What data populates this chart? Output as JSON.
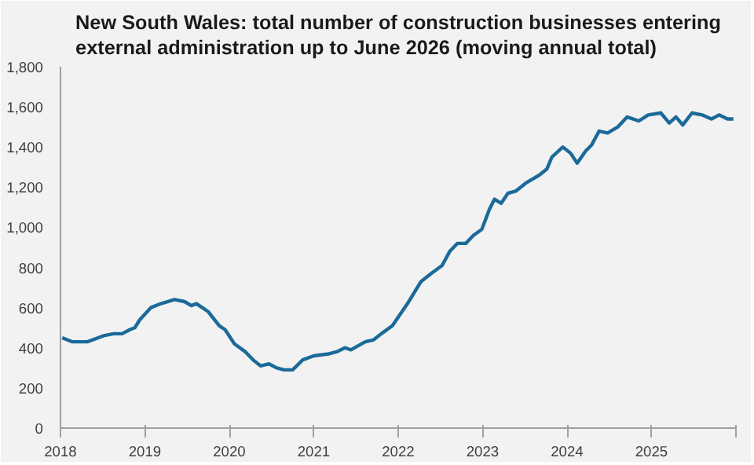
{
  "chart_data": {
    "type": "line",
    "title": "New South Wales: total number of construction businesses entering\nexternal administration up to June 2026 (moving annual total)",
    "x": [
      2018.02,
      2018.14,
      2018.32,
      2018.51,
      2018.63,
      2018.73,
      2018.82,
      2018.88,
      2018.94,
      2019.07,
      2019.19,
      2019.35,
      2019.47,
      2019.55,
      2019.61,
      2019.75,
      2019.88,
      2019.95,
      2020.06,
      2020.19,
      2020.28,
      2020.37,
      2020.47,
      2020.56,
      2020.65,
      2020.75,
      2020.87,
      2021.0,
      2021.18,
      2021.27,
      2021.37,
      2021.44,
      2021.61,
      2021.71,
      2021.8,
      2021.93,
      2022.11,
      2022.27,
      2022.39,
      2022.52,
      2022.61,
      2022.7,
      2022.8,
      2022.89,
      2022.99,
      2023.08,
      2023.14,
      2023.22,
      2023.3,
      2023.39,
      2023.51,
      2023.67,
      2023.76,
      2023.82,
      2023.95,
      2024.04,
      2024.12,
      2024.22,
      2024.29,
      2024.38,
      2024.48,
      2024.6,
      2024.71,
      2024.85,
      2024.96,
      2025.11,
      2025.21,
      2025.29,
      2025.37,
      2025.48,
      2025.6,
      2025.71,
      2025.8,
      2025.9,
      2025.97
    ],
    "series": [
      {
        "color": "#1b6a99",
        "values": [
          450,
          430,
          430,
          460,
          470,
          470,
          490,
          500,
          540,
          600,
          620,
          640,
          630,
          610,
          620,
          580,
          510,
          490,
          420,
          380,
          340,
          310,
          320,
          300,
          290,
          290,
          340,
          360,
          370,
          380,
          400,
          390,
          430,
          440,
          470,
          510,
          620,
          730,
          770,
          810,
          880,
          920,
          920,
          960,
          990,
          1090,
          1140,
          1120,
          1170,
          1180,
          1220,
          1260,
          1290,
          1350,
          1400,
          1370,
          1320,
          1380,
          1410,
          1480,
          1470,
          1500,
          1550,
          1530,
          1560,
          1570,
          1520,
          1550,
          1510,
          1570,
          1560,
          1540,
          1560,
          1540,
          1540
        ]
      }
    ],
    "xlim": [
      2018,
      2026
    ],
    "xticks": [
      {
        "value": 2018,
        "label": "2018"
      },
      {
        "value": 2019,
        "label": "2019"
      },
      {
        "value": 2020,
        "label": "2020"
      },
      {
        "value": 2021,
        "label": "2021"
      },
      {
        "value": 2022,
        "label": "2022"
      },
      {
        "value": 2023,
        "label": "2023"
      },
      {
        "value": 2024,
        "label": "2024"
      },
      {
        "value": 2025,
        "label": "2025"
      },
      {
        "value": 2026,
        "label": null
      }
    ],
    "ylim": [
      0,
      1800
    ],
    "yticks": [
      0,
      200,
      400,
      {
        "value": 600,
        "label": "600"
      },
      {
        "value": 800,
        "label": "800"
      },
      {
        "value": 1000,
        "label": "1,000"
      },
      {
        "value": 1200,
        "label": "1,200"
      },
      {
        "value": 1400,
        "label": "1,400"
      },
      {
        "value": 1600,
        "label": "1,600"
      },
      {
        "value": 1800,
        "label": "1,800"
      }
    ],
    "grid": false,
    "line_style": "solid"
  }
}
